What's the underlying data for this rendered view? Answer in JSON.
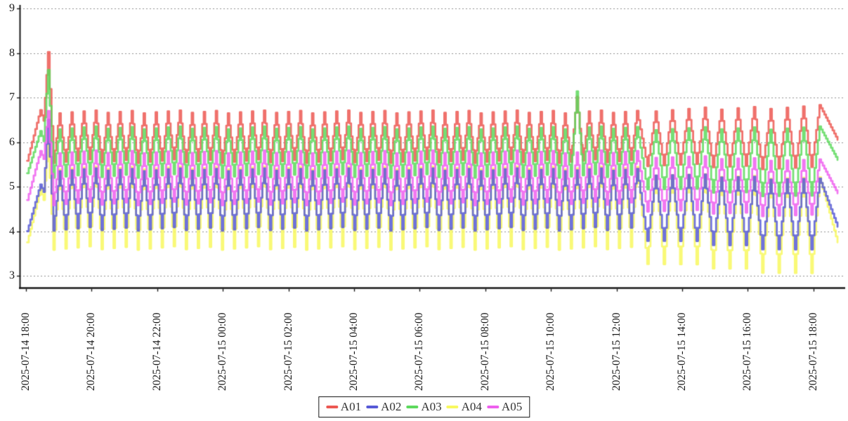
{
  "window": {
    "background": "#ffffff"
  },
  "style": {
    "grid_color": "#8f8f8f",
    "axis_color": "#1a1a1a",
    "text_color": "#1a1a1a",
    "legend_border_color": "#1a1a1a"
  },
  "axes": {
    "y_tick_labels": [
      "9",
      "8",
      "7",
      "6",
      "5",
      "4",
      "3"
    ],
    "y_tick_values": [
      9,
      8,
      7,
      6,
      5,
      4,
      3
    ],
    "x_tick_labels": [
      "2025-07-14 18:00",
      "2025-07-14 20:00",
      "2025-07-14 22:00",
      "2025-07-15 00:00",
      "2025-07-15 02:00",
      "2025-07-15 04:00",
      "2025-07-15 06:00",
      "2025-07-15 08:00",
      "2025-07-15 10:00",
      "2025-07-15 12:00",
      "2025-07-15 14:00",
      "2025-07-15 16:00",
      "2025-07-15 18:00"
    ],
    "x_tick_minutes": [
      0,
      120,
      240,
      360,
      480,
      600,
      720,
      840,
      960,
      1080,
      1200,
      1320,
      1440
    ]
  },
  "chart_data": {
    "type": "line",
    "title": "",
    "xlabel": "",
    "ylabel": "",
    "ylim": [
      3,
      9
    ],
    "x_unit": "minutes after 2025-07-14 18:00",
    "x_range_minutes": [
      2,
      1484
    ],
    "grid": "horizontal-dashed",
    "legend_position": "bottom-center",
    "sample_step_minutes": 3,
    "line_width": 2.8,
    "line_alpha": 0.85,
    "draw_order": [
      "A04",
      "A01",
      "A03",
      "A02",
      "A05"
    ],
    "series": [
      {
        "name": "A01",
        "color": "#ec5852",
        "lead_in": [
          [
            2,
            5.58
          ],
          [
            26,
            6.72
          ],
          [
            32,
            6.48
          ],
          [
            40,
            8.02
          ]
        ],
        "oscillation": [
          {
            "t_start": 50,
            "t_end": 1106,
            "period": 22,
            "trough": [
              5.57,
              5.57
            ],
            "peak": [
              6.68,
              6.68
            ]
          },
          {
            "t_start": 1136,
            "t_end": 1436,
            "period": 30,
            "trough": [
              5.5,
              5.4
            ],
            "peak": [
              6.72,
              6.8
            ]
          }
        ],
        "spikes": [
          {
            "t": 1007,
            "value": 7.02
          }
        ],
        "tail": [
          [
            1484,
            6.05
          ]
        ]
      },
      {
        "name": "A02",
        "color": "#5659d6",
        "lead_in": [
          [
            2,
            4.0
          ],
          [
            26,
            5.05
          ],
          [
            32,
            4.88
          ],
          [
            40,
            6.5
          ]
        ],
        "oscillation": [
          {
            "t_start": 50,
            "t_end": 1106,
            "period": 22,
            "trough": [
              4.05,
              4.05
            ],
            "peak": [
              5.38,
              5.38
            ]
          },
          {
            "t_start": 1136,
            "t_end": 1436,
            "period": 30,
            "trough": [
              3.82,
              3.55
            ],
            "peak": [
              5.28,
              5.15
            ]
          }
        ],
        "spikes": [],
        "tail": [
          [
            1484,
            4.1
          ]
        ]
      },
      {
        "name": "A03",
        "color": "#5dd95d",
        "lead_in": [
          [
            2,
            5.3
          ],
          [
            26,
            6.25
          ],
          [
            32,
            6.02
          ],
          [
            40,
            7.62
          ]
        ],
        "oscillation": [
          {
            "t_start": 50,
            "t_end": 1106,
            "period": 22,
            "trough": [
              5.24,
              5.24
            ],
            "peak": [
              6.32,
              6.32
            ]
          },
          {
            "t_start": 1136,
            "t_end": 1436,
            "period": 30,
            "trough": [
              4.98,
              4.76
            ],
            "peak": [
              6.3,
              6.32
            ]
          }
        ],
        "spikes": [
          {
            "t": 1007,
            "value": 7.14
          }
        ],
        "tail": [
          [
            1484,
            5.6
          ]
        ]
      },
      {
        "name": "A04",
        "color": "#f8f85f",
        "lead_in": [
          [
            2,
            3.75
          ],
          [
            26,
            4.95
          ],
          [
            32,
            4.7
          ],
          [
            40,
            6.0
          ]
        ],
        "oscillation": [
          {
            "t_start": 50,
            "t_end": 1106,
            "period": 22,
            "trough": [
              3.62,
              3.62
            ],
            "peak": [
              5.42,
              5.42
            ]
          },
          {
            "t_start": 1136,
            "t_end": 1436,
            "period": 30,
            "trough": [
              3.3,
              3.02
            ],
            "peak": [
              5.28,
              5.18
            ]
          }
        ],
        "spikes": [],
        "tail": [
          [
            1484,
            3.75
          ]
        ]
      },
      {
        "name": "A05",
        "color": "#ee5fee",
        "lead_in": [
          [
            2,
            4.7
          ],
          [
            26,
            5.8
          ],
          [
            32,
            5.62
          ],
          [
            40,
            6.7
          ]
        ],
        "oscillation": [
          {
            "t_start": 50,
            "t_end": 1106,
            "period": 22,
            "trough": [
              4.62,
              4.62
            ],
            "peak": [
              5.78,
              5.78
            ]
          },
          {
            "t_start": 1136,
            "t_end": 1436,
            "period": 30,
            "trough": [
              4.48,
              4.33
            ],
            "peak": [
              5.68,
              5.58
            ]
          }
        ],
        "spikes": [],
        "tail": [
          [
            1484,
            4.85
          ]
        ]
      }
    ]
  }
}
